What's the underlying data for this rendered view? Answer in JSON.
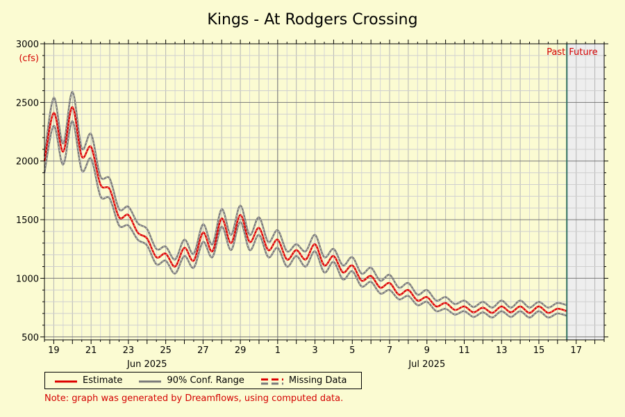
{
  "chart_data": {
    "type": "line",
    "title": "Kings - At Rodgers Crossing",
    "ylabel": "(cfs)",
    "ylim": [
      475,
      3000
    ],
    "yticks": [
      500,
      1000,
      1500,
      2000,
      2500,
      3000
    ],
    "xlim": [
      "2025-06-18T12:00",
      "2025-07-18T12:00"
    ],
    "xtick_labels": [
      "19",
      "21",
      "23",
      "25",
      "27",
      "29",
      "1",
      "3",
      "5",
      "7",
      "9",
      "11",
      "13",
      "15",
      "17"
    ],
    "xtick_dates": [
      "2025-06-19",
      "2025-06-21",
      "2025-06-23",
      "2025-06-25",
      "2025-06-27",
      "2025-06-29",
      "2025-07-01",
      "2025-07-03",
      "2025-07-05",
      "2025-07-07",
      "2025-07-09",
      "2025-07-11",
      "2025-07-13",
      "2025-07-15",
      "2025-07-17"
    ],
    "month_labels": [
      {
        "label": "Jun 2025",
        "date": "2025-06-24"
      },
      {
        "label": "Jul 2025",
        "date": "2025-07-09"
      }
    ],
    "month_boundary": "2025-07-01",
    "now": "2025-07-16T12:00",
    "past_label": "Past",
    "future_label": "Future",
    "grid": true,
    "legend_placement": "bottom",
    "colors": {
      "estimate": "#dd0000",
      "conf": "#7a7a7a",
      "now_line": "#2f6f5f",
      "future_bg": "#eeeeee"
    },
    "series": [
      {
        "name": "Estimate",
        "x": [
          "2025-06-18T12:00",
          "2025-06-19T00:00",
          "2025-06-19T12:00",
          "2025-06-20T00:00",
          "2025-06-20T12:00",
          "2025-06-21T00:00",
          "2025-06-21T12:00",
          "2025-06-22T00:00",
          "2025-06-22T12:00",
          "2025-06-23T00:00",
          "2025-06-23T12:00",
          "2025-06-24T00:00",
          "2025-06-24T12:00",
          "2025-06-25T00:00",
          "2025-06-25T12:00",
          "2025-06-26T00:00",
          "2025-06-26T12:00",
          "2025-06-27T00:00",
          "2025-06-27T12:00",
          "2025-06-28T00:00",
          "2025-06-28T12:00",
          "2025-06-29T00:00",
          "2025-06-29T12:00",
          "2025-06-30T00:00",
          "2025-06-30T12:00",
          "2025-07-01T00:00",
          "2025-07-01T12:00",
          "2025-07-02T00:00",
          "2025-07-02T12:00",
          "2025-07-03T00:00",
          "2025-07-03T12:00",
          "2025-07-04T00:00",
          "2025-07-04T12:00",
          "2025-07-05T00:00",
          "2025-07-05T12:00",
          "2025-07-06T00:00",
          "2025-07-06T12:00",
          "2025-07-07T00:00",
          "2025-07-07T12:00",
          "2025-07-08T00:00",
          "2025-07-08T12:00",
          "2025-07-09T00:00",
          "2025-07-09T12:00",
          "2025-07-10T00:00",
          "2025-07-10T12:00",
          "2025-07-11T00:00",
          "2025-07-11T12:00",
          "2025-07-12T00:00",
          "2025-07-12T12:00",
          "2025-07-13T00:00",
          "2025-07-13T12:00",
          "2025-07-14T00:00",
          "2025-07-14T12:00",
          "2025-07-15T00:00",
          "2025-07-15T12:00",
          "2025-07-16T00:00",
          "2025-07-16T12:00"
        ],
        "values": [
          2000,
          2410,
          2080,
          2460,
          2040,
          2120,
          1800,
          1760,
          1520,
          1540,
          1390,
          1340,
          1180,
          1210,
          1100,
          1260,
          1150,
          1390,
          1230,
          1510,
          1300,
          1540,
          1310,
          1430,
          1240,
          1330,
          1160,
          1240,
          1160,
          1290,
          1110,
          1190,
          1050,
          1110,
          980,
          1020,
          920,
          960,
          860,
          900,
          810,
          840,
          760,
          790,
          730,
          760,
          710,
          750,
          705,
          760,
          710,
          760,
          705,
          760,
          705,
          740,
          720
        ]
      },
      {
        "name": "90% Conf. Range",
        "upper": [
          2040,
          2540,
          2150,
          2590,
          2110,
          2230,
          1870,
          1850,
          1590,
          1610,
          1470,
          1420,
          1250,
          1270,
          1160,
          1330,
          1210,
          1460,
          1290,
          1590,
          1370,
          1620,
          1370,
          1520,
          1310,
          1410,
          1230,
          1290,
          1230,
          1370,
          1180,
          1250,
          1110,
          1180,
          1040,
          1090,
          980,
          1030,
          920,
          960,
          860,
          900,
          810,
          840,
          780,
          810,
          755,
          800,
          750,
          810,
          750,
          810,
          750,
          800,
          750,
          790,
          770
        ],
        "lower": [
          1900,
          2300,
          1970,
          2340,
          1920,
          2020,
          1700,
          1680,
          1450,
          1450,
          1330,
          1280,
          1120,
          1150,
          1040,
          1190,
          1090,
          1310,
          1180,
          1440,
          1240,
          1480,
          1240,
          1370,
          1180,
          1260,
          1100,
          1190,
          1100,
          1230,
          1050,
          1140,
          990,
          1060,
          930,
          970,
          870,
          900,
          820,
          850,
          770,
          800,
          720,
          740,
          690,
          720,
          670,
          710,
          665,
          720,
          670,
          720,
          665,
          720,
          665,
          700,
          680
        ]
      }
    ],
    "legend": [
      {
        "name": "Estimate",
        "style": "solid",
        "color": "#dd0000"
      },
      {
        "name": "90% Conf. Range",
        "style": "solid",
        "color": "#7a7a7a"
      },
      {
        "name": "Missing Data",
        "style": "dashed",
        "color": "#dd0000"
      }
    ],
    "note": "Note: graph was generated by Dreamflows, using computed data."
  }
}
